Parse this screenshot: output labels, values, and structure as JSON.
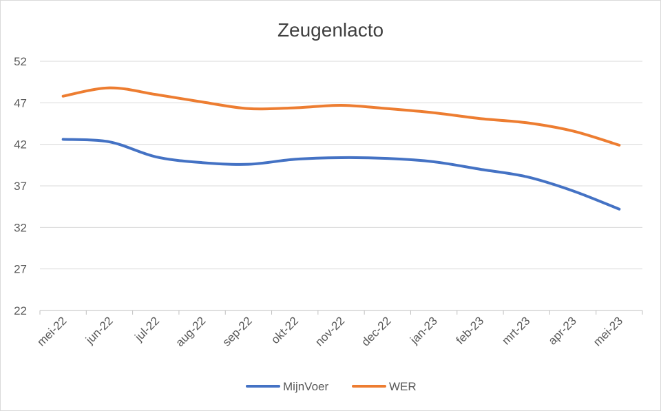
{
  "chart_data": {
    "type": "line",
    "title": "Zeugenlacto",
    "xlabel": "",
    "ylabel": "",
    "categories": [
      "mei-22",
      "jun-22",
      "jul-22",
      "aug-22",
      "sep-22",
      "okt-22",
      "nov-22",
      "dec-22",
      "jan-23",
      "feb-23",
      "mrt-23",
      "apr-23",
      "mei-23"
    ],
    "ylim": [
      22,
      52
    ],
    "yticks": [
      22,
      27,
      32,
      37,
      42,
      47,
      52
    ],
    "grid": true,
    "legend_position": "bottom",
    "series": [
      {
        "name": "MijnVoer",
        "color": "#4472C4",
        "values": [
          42.6,
          42.3,
          40.5,
          39.8,
          39.6,
          40.2,
          40.4,
          40.3,
          39.9,
          39.0,
          38.1,
          36.4,
          34.2
        ]
      },
      {
        "name": "WER",
        "color": "#ED7D31",
        "values": [
          47.8,
          48.8,
          48.0,
          47.1,
          46.3,
          46.4,
          46.7,
          46.3,
          45.8,
          45.1,
          44.6,
          43.6,
          41.9
        ]
      }
    ]
  }
}
